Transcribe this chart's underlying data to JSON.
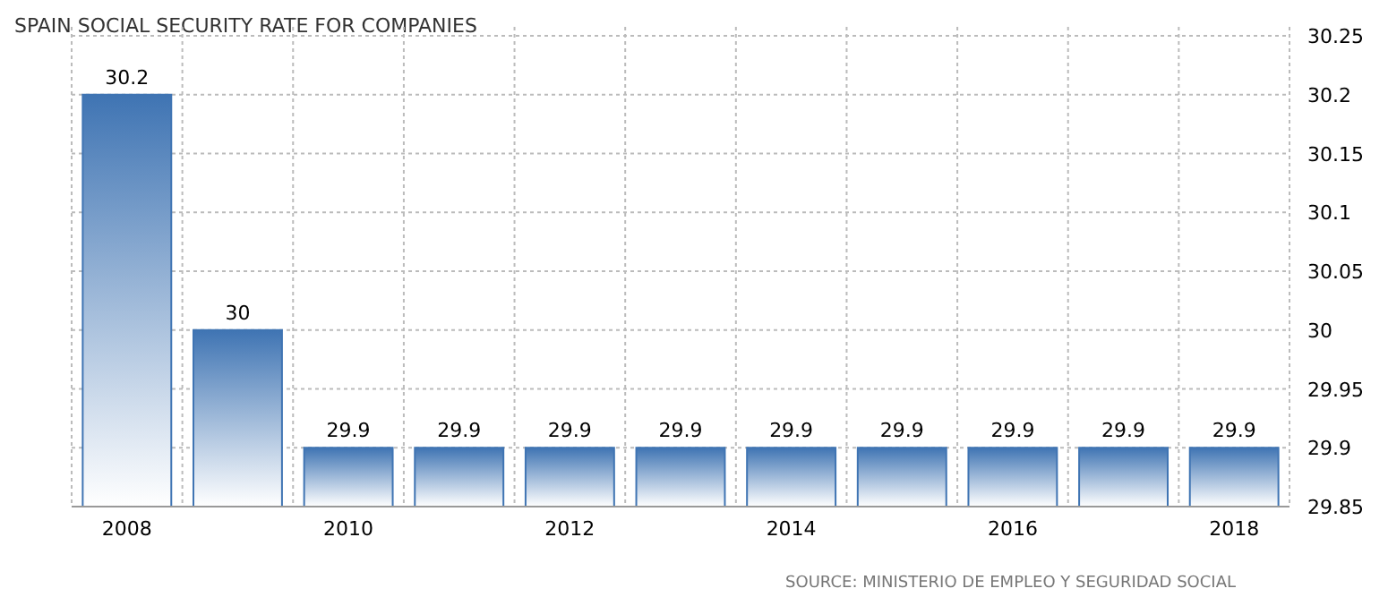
{
  "chart_data": {
    "type": "bar",
    "title": "SPAIN SOCIAL SECURITY RATE FOR COMPANIES",
    "categories": [
      "2008",
      null,
      "2010",
      null,
      "2012",
      null,
      "2014",
      null,
      "2016",
      null,
      "2018"
    ],
    "values": [
      30.2,
      30,
      29.9,
      29.9,
      29.9,
      29.9,
      29.9,
      29.9,
      29.9,
      29.9,
      29.9
    ],
    "color": "#3f74b3",
    "data_labels": true,
    "ylim": [
      29.85,
      30.25
    ],
    "yticks": [
      29.85,
      29.9,
      29.95,
      30,
      30.05,
      30.1,
      30.15,
      30.2,
      30.25
    ],
    "grid": true,
    "annotations": [
      "SOURCE: MINISTERIO DE EMPLEO Y SEGURIDAD SOCIAL"
    ]
  }
}
